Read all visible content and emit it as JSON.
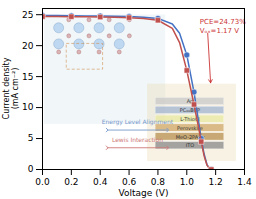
{
  "chart_data": {
    "type": "line",
    "xlabel": "Voltage (V)",
    "ylabel": "Current density\n(mA cm⁻²)",
    "xlim": [
      0.0,
      1.4
    ],
    "ylim": [
      0,
      26
    ],
    "xticks": [
      {
        "value": 0.0,
        "label": "0.0"
      },
      0.2,
      0.4,
      0.6,
      0.8,
      {
        "value": 1.0,
        "label": "1.0"
      },
      1.2,
      1.4
    ],
    "yticks": [
      0,
      5,
      10,
      15,
      20,
      25
    ],
    "series": [
      {
        "type": "line",
        "color": "#4472c4",
        "x": [
          0.0,
          0.1,
          0.2,
          0.3,
          0.4,
          0.5,
          0.6,
          0.7,
          0.8,
          0.9,
          0.95,
          1.0,
          1.05,
          1.08,
          1.1,
          1.12,
          1.14,
          1.16,
          1.17,
          1.175
        ],
        "values": [
          24.85,
          24.85,
          24.82,
          24.8,
          24.78,
          24.75,
          24.7,
          24.6,
          24.4,
          23.5,
          22.0,
          18.5,
          12.5,
          8.0,
          5.0,
          2.5,
          0.8,
          0.1,
          0.0,
          0.0
        ]
      },
      {
        "type": "scatter",
        "marker": "circle",
        "color": "#4472c4",
        "x": [
          0.0,
          0.2,
          0.4,
          0.6,
          0.8,
          1.0,
          1.05,
          1.1,
          1.17
        ],
        "values": [
          24.85,
          24.82,
          24.78,
          24.7,
          24.4,
          18.5,
          12.5,
          5.0,
          0.0
        ]
      },
      {
        "type": "line",
        "color": "#c0504d",
        "x": [
          0.0,
          0.1,
          0.2,
          0.3,
          0.4,
          0.5,
          0.6,
          0.7,
          0.8,
          0.9,
          0.95,
          1.0,
          1.05,
          1.08,
          1.1,
          1.12,
          1.14,
          1.16,
          1.17,
          1.175
        ],
        "values": [
          24.7,
          24.7,
          24.68,
          24.65,
          24.62,
          24.58,
          24.52,
          24.4,
          24.1,
          22.8,
          20.5,
          16.0,
          10.5,
          7.0,
          4.5,
          2.2,
          0.7,
          0.05,
          0.0,
          0.0
        ]
      },
      {
        "type": "scatter",
        "marker": "square",
        "color": "#c0504d",
        "x": [
          0.0,
          0.2,
          0.4,
          0.6,
          0.8,
          1.0,
          1.05,
          1.1,
          1.17
        ],
        "values": [
          24.7,
          24.68,
          24.62,
          24.52,
          24.1,
          16.0,
          10.5,
          4.5,
          0.0
        ]
      }
    ],
    "annotations": [
      {
        "text": "PCE=24.73%\nVₒₓ=1.17 V",
        "x": 1.09,
        "y": 24.5,
        "color": "#cc3333"
      }
    ],
    "arrows": [
      {
        "x1": 1.145,
        "y1": 22.0,
        "x2": 1.165,
        "y2": 14.0,
        "color": "#cc3333"
      }
    ],
    "schematic": {
      "energy": {
        "text": "Energy Level Alignment",
        "color": "#7799cc"
      },
      "lewis": {
        "text": "Lewis Interaction",
        "color": "#cc7777"
      },
      "layers": [
        {
          "text": "Ag",
          "color": "#c8c8c8"
        },
        {
          "text": "PC₆₀BCP",
          "color": "#a0b4d0"
        },
        {
          "text": "L-ThioCl",
          "color": "#e8e8a0"
        },
        {
          "text": "Perovskite",
          "color": "#d0a868"
        },
        {
          "text": "MeO-2PACz",
          "color": "#b89050"
        },
        {
          "text": "ITO",
          "color": "#888888"
        }
      ]
    }
  }
}
